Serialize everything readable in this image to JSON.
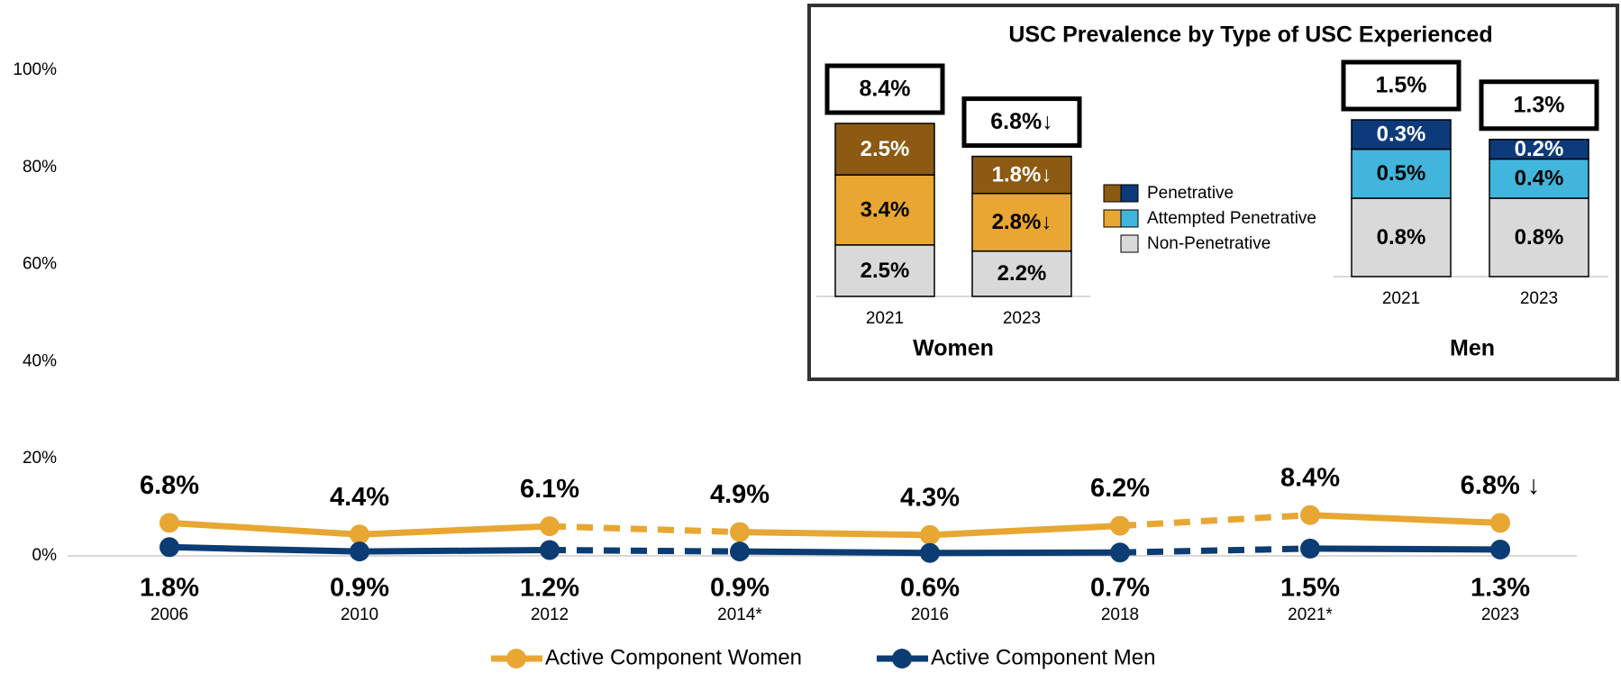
{
  "chart_data": [
    {
      "type": "line",
      "categories": [
        "2006",
        "2010",
        "2012",
        "2014*",
        "2016",
        "2018",
        "2021*",
        "2023"
      ],
      "series": [
        {
          "name": "Active Component Women",
          "color": "#E8A632",
          "values": [
            6.8,
            4.4,
            6.1,
            4.9,
            4.3,
            6.2,
            8.4,
            6.8
          ],
          "value_labels": [
            "6.8%",
            "4.4%",
            "6.1%",
            "4.9%",
            "4.3%",
            "6.2%",
            "8.4%",
            "6.8% ↓"
          ]
        },
        {
          "name": "Active Component Men",
          "color": "#0B3C73",
          "values": [
            1.8,
            0.9,
            1.2,
            0.9,
            0.6,
            0.7,
            1.5,
            1.3
          ],
          "value_labels": [
            "1.8%",
            "0.9%",
            "1.2%",
            "0.9%",
            "0.6%",
            "0.7%",
            "1.5%",
            "1.3%"
          ]
        }
      ],
      "ylim": [
        0,
        100
      ],
      "yticks": [
        {
          "value": 0,
          "label": "0%"
        },
        {
          "value": 20,
          "label": "20%"
        },
        {
          "value": 40,
          "label": "40%"
        },
        {
          "value": 60,
          "label": "60%"
        },
        {
          "value": 80,
          "label": "80%"
        },
        {
          "value": 100,
          "label": "100%"
        }
      ],
      "dashed_segments": [
        [
          2,
          3
        ],
        [
          5,
          6
        ]
      ]
    },
    {
      "type": "stacked_bar",
      "title": "USC Prevalence by Type of USC Experienced",
      "panels": [
        {
          "label": "Women",
          "categories": [
            "2021",
            "2023"
          ],
          "totals": [
            8.4,
            6.8
          ],
          "total_labels": [
            "8.4%",
            "6.8%↓"
          ],
          "series": [
            {
              "name": "Non-Penetrative",
              "color": "#D9D9D9",
              "values": [
                2.5,
                2.2
              ],
              "value_labels": [
                "2.5%",
                "2.2%"
              ]
            },
            {
              "name": "Attempted Penetrative",
              "color": "#E8A632",
              "values": [
                3.4,
                2.8
              ],
              "value_labels": [
                "3.4%",
                "2.8%↓"
              ]
            },
            {
              "name": "Penetrative",
              "color": "#8C5A12",
              "values": [
                2.5,
                1.8
              ],
              "value_labels": [
                "2.5%",
                "1.8%↓"
              ]
            }
          ]
        },
        {
          "label": "Men",
          "categories": [
            "2021",
            "2023"
          ],
          "totals": [
            1.5,
            1.3
          ],
          "total_labels": [
            "1.5%",
            "1.3%"
          ],
          "series": [
            {
              "color": "#D9D9D9",
              "values": [
                0.8,
                0.8
              ],
              "value_labels": [
                "0.8%",
                "0.8%"
              ]
            },
            {
              "color": "#41B5DC",
              "values": [
                0.5,
                0.4
              ],
              "value_labels": [
                "0.5%",
                "0.4%"
              ]
            },
            {
              "color": "#0D3A7A",
              "values": [
                0.3,
                0.2
              ],
              "value_labels": [
                "0.3%",
                "0.2%"
              ]
            }
          ]
        }
      ]
    }
  ]
}
